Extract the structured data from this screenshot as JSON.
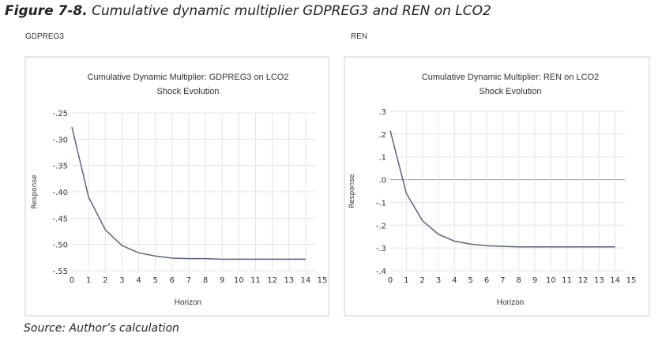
{
  "figure": {
    "number": "Figure 7-8.",
    "caption": "Cumulative dynamic multiplier GDPREG3 and REN on LCO2",
    "source": "Source: Author’s calculation"
  },
  "panels": [
    "GDPREG3",
    "REN"
  ],
  "chart_data": [
    {
      "type": "line",
      "title": "Cumulative Dynamic Multiplier: GDPREG3 on LCO2",
      "subtitle": "Shock Evolution",
      "xlabel": "Horizon",
      "ylabel": "Response",
      "xlim": [
        0,
        15
      ],
      "ylim": [
        -0.55,
        -0.25
      ],
      "xticks": [
        "0",
        "1",
        "2",
        "3",
        "4",
        "5",
        "6",
        "7",
        "8",
        "9",
        "10",
        "11",
        "12",
        "13",
        "14",
        "15"
      ],
      "yticks": [
        {
          "v": -0.25,
          "l": "-.25"
        },
        {
          "v": -0.3,
          "l": "-.30"
        },
        {
          "v": -0.35,
          "l": "-.35"
        },
        {
          "v": -0.4,
          "l": "-.40"
        },
        {
          "v": -0.45,
          "l": "-.45"
        },
        {
          "v": -0.5,
          "l": "-.50"
        },
        {
          "v": -0.55,
          "l": "-.55"
        }
      ],
      "grid": true,
      "x": [
        0,
        1,
        2,
        3,
        4,
        5,
        6,
        7,
        8,
        9,
        10,
        11,
        12,
        13,
        14
      ],
      "series": [
        {
          "name": "GDPREG3",
          "values": [
            -0.277,
            -0.41,
            -0.472,
            -0.502,
            -0.516,
            -0.522,
            -0.526,
            -0.527,
            -0.527,
            -0.528,
            -0.528,
            -0.528,
            -0.528,
            -0.528,
            -0.528
          ]
        }
      ],
      "line_color": "#5a6478"
    },
    {
      "type": "line",
      "title": "Cumulative Dynamic Multiplier: REN on LCO2",
      "subtitle": "Shock Evolution",
      "xlabel": "Horizon",
      "ylabel": "Response",
      "xlim": [
        0,
        15
      ],
      "ylim": [
        -0.4,
        0.3
      ],
      "xticks": [
        "0",
        "1",
        "2",
        "3",
        "4",
        "5",
        "6",
        "7",
        "8",
        "9",
        "10",
        "11",
        "12",
        "13",
        "14",
        "15"
      ],
      "yticks": [
        {
          "v": 0.3,
          "l": ".3"
        },
        {
          "v": 0.2,
          "l": ".2"
        },
        {
          "v": 0.1,
          "l": ".1"
        },
        {
          "v": 0.0,
          "l": ".0"
        },
        {
          "v": -0.1,
          "l": "-.1"
        },
        {
          "v": -0.2,
          "l": "-.2"
        },
        {
          "v": -0.3,
          "l": "-.3"
        },
        {
          "v": -0.4,
          "l": "-.4"
        }
      ],
      "grid": true,
      "zero_line": true,
      "x": [
        0,
        1,
        2,
        3,
        4,
        5,
        6,
        7,
        8,
        9,
        10,
        11,
        12,
        13,
        14
      ],
      "series": [
        {
          "name": "REN",
          "values": [
            0.215,
            -0.06,
            -0.18,
            -0.24,
            -0.27,
            -0.283,
            -0.29,
            -0.293,
            -0.295,
            -0.295,
            -0.295,
            -0.295,
            -0.295,
            -0.295,
            -0.295
          ]
        }
      ],
      "line_color": "#5a6478"
    }
  ]
}
